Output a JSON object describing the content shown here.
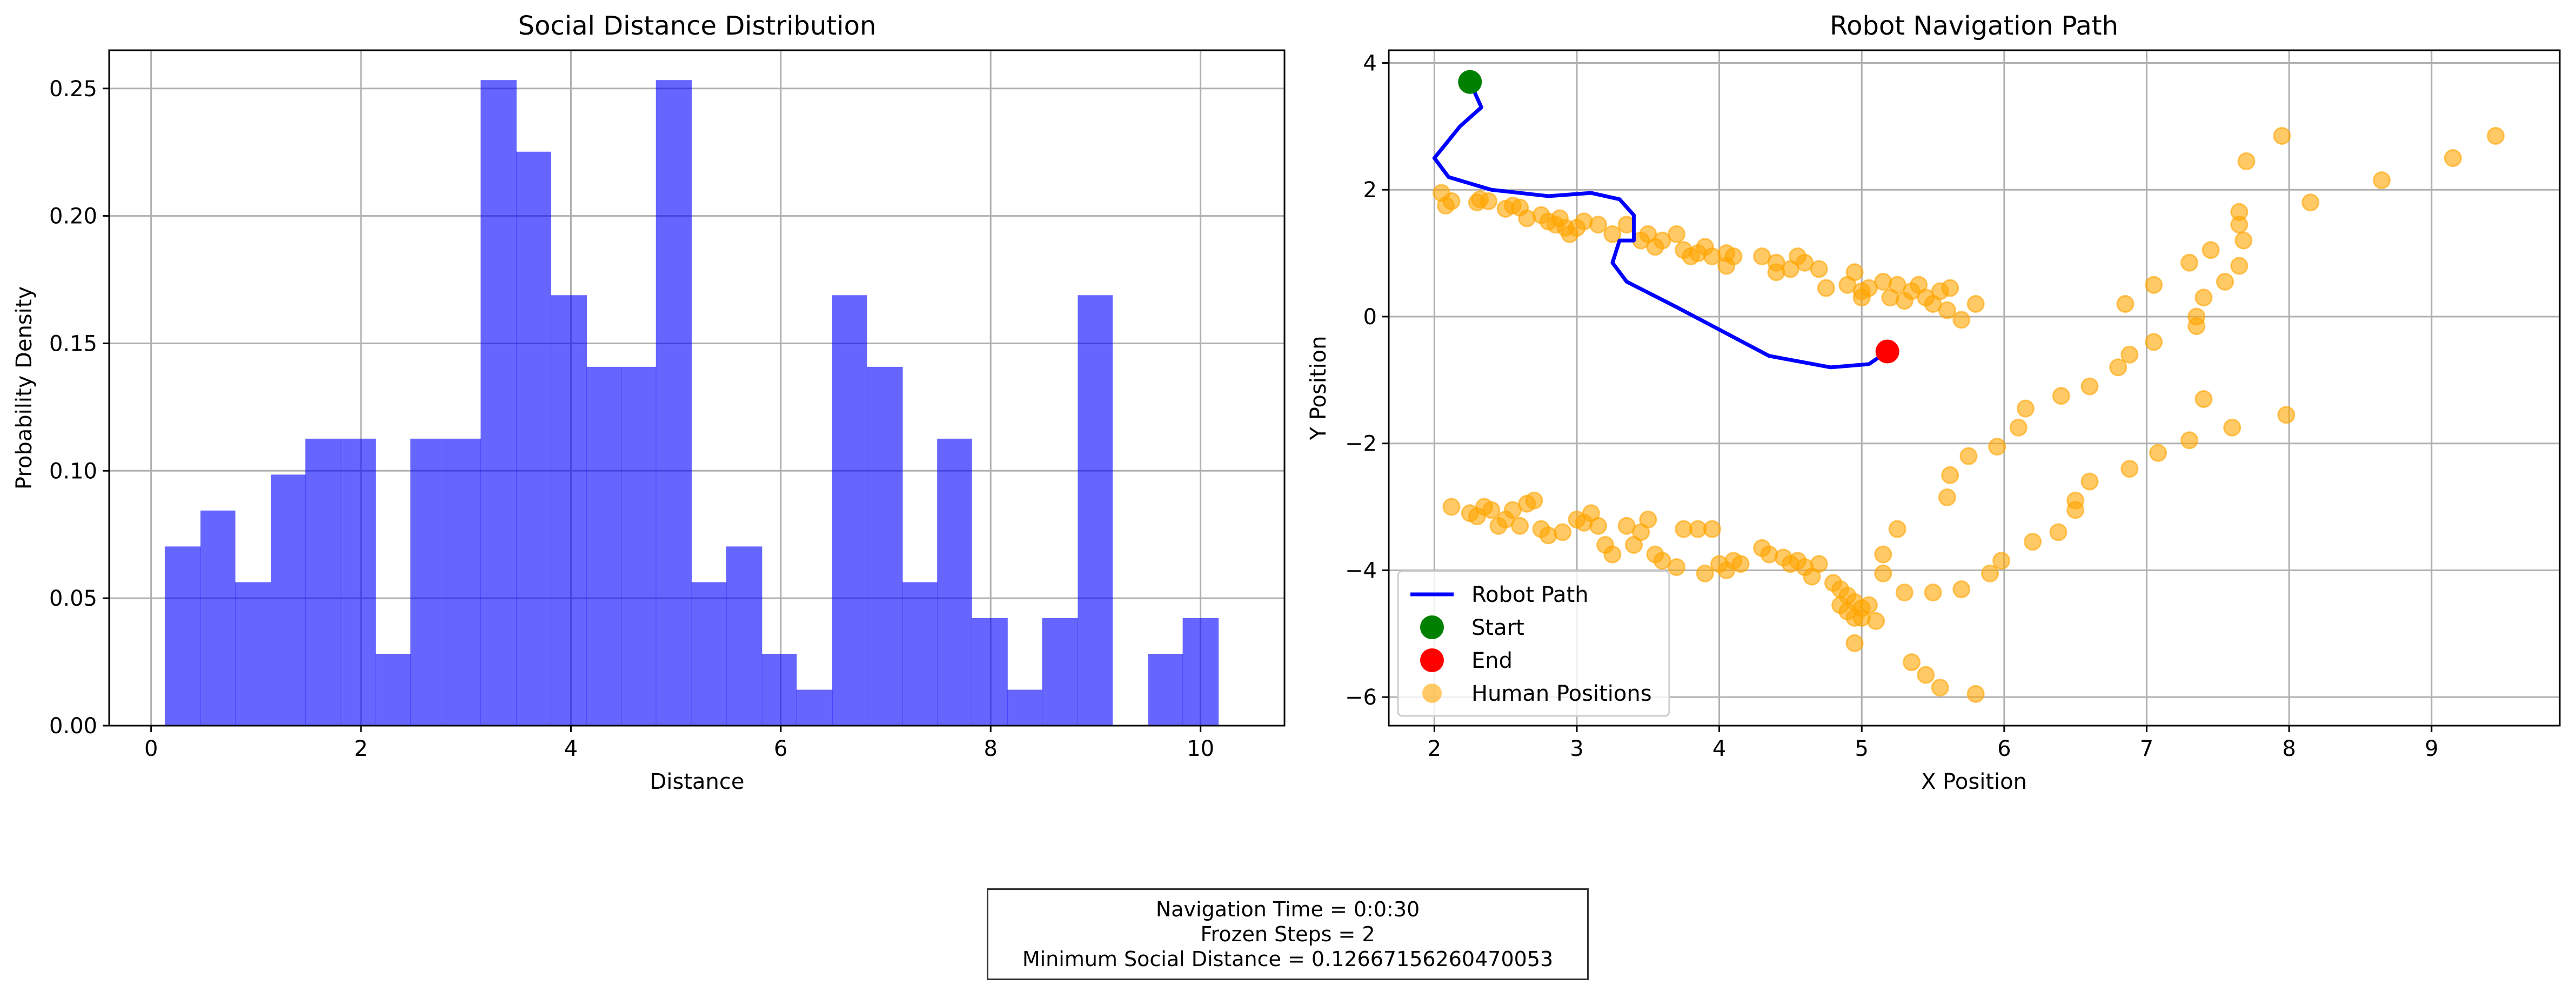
{
  "chart_data": [
    {
      "type": "bar",
      "title": "Social Distance Distribution",
      "xlabel": "Distance",
      "ylabel": "Probability Density",
      "xlim": [
        -0.4,
        10.8
      ],
      "ylim": [
        0,
        0.265
      ],
      "xticks": [
        "0",
        "2",
        "4",
        "6",
        "8",
        "10"
      ],
      "yticks": [
        "0.00",
        "0.05",
        "0.10",
        "0.15",
        "0.20",
        "0.25"
      ],
      "grid": true,
      "bar_color": "#0000ff",
      "bins": [
        {
          "x0": 0.13,
          "x1": 0.47,
          "value": 0.0703
        },
        {
          "x0": 0.47,
          "x1": 0.8,
          "value": 0.0844
        },
        {
          "x0": 0.8,
          "x1": 1.14,
          "value": 0.0563
        },
        {
          "x0": 1.14,
          "x1": 1.47,
          "value": 0.0985
        },
        {
          "x0": 1.47,
          "x1": 1.8,
          "value": 0.1126
        },
        {
          "x0": 1.8,
          "x1": 2.14,
          "value": 0.1126
        },
        {
          "x0": 2.14,
          "x1": 2.47,
          "value": 0.0282
        },
        {
          "x0": 2.47,
          "x1": 2.81,
          "value": 0.1126
        },
        {
          "x0": 2.81,
          "x1": 3.14,
          "value": 0.1126
        },
        {
          "x0": 3.14,
          "x1": 3.48,
          "value": 0.2533
        },
        {
          "x0": 3.48,
          "x1": 3.81,
          "value": 0.2252
        },
        {
          "x0": 3.81,
          "x1": 4.15,
          "value": 0.1689
        },
        {
          "x0": 4.15,
          "x1": 4.48,
          "value": 0.1408
        },
        {
          "x0": 4.48,
          "x1": 4.81,
          "value": 0.1408
        },
        {
          "x0": 4.81,
          "x1": 5.15,
          "value": 0.2533
        },
        {
          "x0": 5.15,
          "x1": 5.48,
          "value": 0.0563
        },
        {
          "x0": 5.48,
          "x1": 5.82,
          "value": 0.0703
        },
        {
          "x0": 5.82,
          "x1": 6.15,
          "value": 0.0282
        },
        {
          "x0": 6.15,
          "x1": 6.49,
          "value": 0.0141
        },
        {
          "x0": 6.49,
          "x1": 6.82,
          "value": 0.1689
        },
        {
          "x0": 6.82,
          "x1": 7.16,
          "value": 0.1408
        },
        {
          "x0": 7.16,
          "x1": 7.49,
          "value": 0.0563
        },
        {
          "x0": 7.49,
          "x1": 7.82,
          "value": 0.1126
        },
        {
          "x0": 7.82,
          "x1": 8.16,
          "value": 0.0422
        },
        {
          "x0": 8.16,
          "x1": 8.49,
          "value": 0.0141
        },
        {
          "x0": 8.49,
          "x1": 8.83,
          "value": 0.0422
        },
        {
          "x0": 8.83,
          "x1": 9.16,
          "value": 0.1689
        },
        {
          "x0": 9.16,
          "x1": 9.5,
          "value": 0.0
        },
        {
          "x0": 9.5,
          "x1": 9.83,
          "value": 0.0282
        },
        {
          "x0": 9.83,
          "x1": 10.17,
          "value": 0.0422
        }
      ]
    },
    {
      "type": "line",
      "title": "Robot Navigation Path",
      "xlabel": "X Position",
      "ylabel": "Y Position",
      "xlim": [
        1.68,
        9.9
      ],
      "ylim": [
        -6.45,
        4.2
      ],
      "xticks": [
        2,
        3,
        4,
        5,
        6,
        7,
        8,
        9
      ],
      "yticks": [
        -6,
        -4,
        -2,
        0,
        2,
        4
      ],
      "ytick_labels": [
        "−6",
        "−4",
        "−2",
        "0",
        "2",
        "4"
      ],
      "grid": true,
      "legend_position": "lower-left",
      "series": [
        {
          "name": "Robot Path",
          "kind": "line",
          "color": "#0000ff",
          "x": [
            2.25,
            2.33,
            2.18,
            2.0,
            2.1,
            2.4,
            2.8,
            3.1,
            3.3,
            3.4,
            3.4,
            3.3,
            3.25,
            3.35,
            3.7,
            4.35,
            4.78,
            5.05,
            5.18
          ],
          "y": [
            3.7,
            3.3,
            3.0,
            2.5,
            2.2,
            2.0,
            1.9,
            1.95,
            1.85,
            1.6,
            1.2,
            1.2,
            0.85,
            0.55,
            0.15,
            -0.62,
            -0.8,
            -0.75,
            -0.55
          ]
        },
        {
          "name": "Start",
          "kind": "marker",
          "color": "#008000",
          "x": [
            2.25
          ],
          "y": [
            3.7
          ]
        },
        {
          "name": "End",
          "kind": "marker",
          "color": "#ff0000",
          "x": [
            5.18
          ],
          "y": [
            -0.55
          ]
        },
        {
          "name": "Human Positions",
          "kind": "scatter",
          "color": "#ffa500",
          "alpha": 0.6,
          "points": [
            [
              2.05,
              1.95
            ],
            [
              2.08,
              1.75
            ],
            [
              2.12,
              1.82
            ],
            [
              2.3,
              1.8
            ],
            [
              2.32,
              1.85
            ],
            [
              2.38,
              1.82
            ],
            [
              2.5,
              1.7
            ],
            [
              2.55,
              1.75
            ],
            [
              2.6,
              1.72
            ],
            [
              2.65,
              1.55
            ],
            [
              2.75,
              1.6
            ],
            [
              2.8,
              1.5
            ],
            [
              2.85,
              1.45
            ],
            [
              2.88,
              1.55
            ],
            [
              2.92,
              1.4
            ],
            [
              2.95,
              1.3
            ],
            [
              3.0,
              1.4
            ],
            [
              3.05,
              1.5
            ],
            [
              3.15,
              1.45
            ],
            [
              3.25,
              1.3
            ],
            [
              3.35,
              1.45
            ],
            [
              3.45,
              1.2
            ],
            [
              3.5,
              1.3
            ],
            [
              3.55,
              1.1
            ],
            [
              3.6,
              1.2
            ],
            [
              3.7,
              1.3
            ],
            [
              3.75,
              1.05
            ],
            [
              3.8,
              0.95
            ],
            [
              3.85,
              1.0
            ],
            [
              3.9,
              1.1
            ],
            [
              3.95,
              0.95
            ],
            [
              4.05,
              0.8
            ],
            [
              4.05,
              1.0
            ],
            [
              4.1,
              0.95
            ],
            [
              4.3,
              0.95
            ],
            [
              4.4,
              0.85
            ],
            [
              4.4,
              0.7
            ],
            [
              4.5,
              0.75
            ],
            [
              4.55,
              0.95
            ],
            [
              4.6,
              0.85
            ],
            [
              4.7,
              0.75
            ],
            [
              4.75,
              0.45
            ],
            [
              4.9,
              0.5
            ],
            [
              4.95,
              0.7
            ],
            [
              5.0,
              0.3
            ],
            [
              5.0,
              0.4
            ],
            [
              5.05,
              0.45
            ],
            [
              5.15,
              0.55
            ],
            [
              5.2,
              0.3
            ],
            [
              5.25,
              0.5
            ],
            [
              5.3,
              0.25
            ],
            [
              5.35,
              0.4
            ],
            [
              5.4,
              0.5
            ],
            [
              5.45,
              0.3
            ],
            [
              5.5,
              0.2
            ],
            [
              5.55,
              0.4
            ],
            [
              5.6,
              0.1
            ],
            [
              5.62,
              0.45
            ],
            [
              5.7,
              -0.05
            ],
            [
              5.8,
              0.2
            ],
            [
              2.12,
              -3.0
            ],
            [
              2.25,
              -3.1
            ],
            [
              2.3,
              -3.15
            ],
            [
              2.35,
              -3.0
            ],
            [
              2.4,
              -3.05
            ],
            [
              2.45,
              -3.3
            ],
            [
              2.5,
              -3.2
            ],
            [
              2.55,
              -3.05
            ],
            [
              2.6,
              -3.3
            ],
            [
              2.65,
              -2.95
            ],
            [
              2.7,
              -2.9
            ],
            [
              2.75,
              -3.35
            ],
            [
              2.8,
              -3.45
            ],
            [
              2.9,
              -3.4
            ],
            [
              3.0,
              -3.2
            ],
            [
              3.05,
              -3.25
            ],
            [
              3.1,
              -3.1
            ],
            [
              3.15,
              -3.3
            ],
            [
              3.2,
              -3.6
            ],
            [
              3.25,
              -3.75
            ],
            [
              3.35,
              -3.3
            ],
            [
              3.4,
              -3.6
            ],
            [
              3.45,
              -3.4
            ],
            [
              3.5,
              -3.2
            ],
            [
              3.55,
              -3.75
            ],
            [
              3.6,
              -3.85
            ],
            [
              3.7,
              -3.95
            ],
            [
              3.75,
              -3.35
            ],
            [
              3.85,
              -3.35
            ],
            [
              3.9,
              -4.05
            ],
            [
              3.95,
              -3.35
            ],
            [
              4.0,
              -3.9
            ],
            [
              4.05,
              -4.0
            ],
            [
              4.1,
              -3.85
            ],
            [
              4.15,
              -3.9
            ],
            [
              4.3,
              -3.65
            ],
            [
              4.35,
              -3.75
            ],
            [
              4.45,
              -3.8
            ],
            [
              4.5,
              -3.9
            ],
            [
              4.55,
              -3.85
            ],
            [
              4.6,
              -3.95
            ],
            [
              4.65,
              -4.1
            ],
            [
              4.7,
              -3.9
            ],
            [
              4.8,
              -4.2
            ],
            [
              4.85,
              -4.3
            ],
            [
              4.9,
              -4.4
            ],
            [
              4.95,
              -4.5
            ],
            [
              5.0,
              -4.6
            ],
            [
              5.05,
              -4.55
            ],
            [
              4.85,
              -4.55
            ],
            [
              4.9,
              -4.65
            ],
            [
              4.95,
              -4.75
            ],
            [
              5.0,
              -4.75
            ],
            [
              5.1,
              -4.8
            ],
            [
              4.95,
              -5.15
            ],
            [
              5.15,
              -4.05
            ],
            [
              5.15,
              -3.75
            ],
            [
              5.25,
              -3.35
            ],
            [
              5.3,
              -4.35
            ],
            [
              5.35,
              -5.45
            ],
            [
              5.45,
              -5.65
            ],
            [
              5.5,
              -4.35
            ],
            [
              5.55,
              -5.85
            ],
            [
              5.6,
              -2.85
            ],
            [
              5.62,
              -2.5
            ],
            [
              5.7,
              -4.3
            ],
            [
              5.75,
              -2.2
            ],
            [
              5.8,
              -5.95
            ],
            [
              5.9,
              -4.05
            ],
            [
              5.95,
              -2.05
            ],
            [
              5.98,
              -3.85
            ],
            [
              6.1,
              -1.75
            ],
            [
              6.15,
              -1.45
            ],
            [
              6.2,
              -3.55
            ],
            [
              6.38,
              -3.4
            ],
            [
              6.4,
              -1.25
            ],
            [
              6.5,
              -3.05
            ],
            [
              6.5,
              -2.9
            ],
            [
              6.6,
              -2.6
            ],
            [
              6.6,
              -1.1
            ],
            [
              6.8,
              -0.8
            ],
            [
              6.85,
              0.2
            ],
            [
              6.88,
              -0.6
            ],
            [
              6.88,
              -2.4
            ],
            [
              7.05,
              -0.4
            ],
            [
              7.05,
              0.5
            ],
            [
              7.08,
              -2.15
            ],
            [
              7.3,
              -1.95
            ],
            [
              7.3,
              0.85
            ],
            [
              7.35,
              -0.15
            ],
            [
              7.35,
              0.0
            ],
            [
              7.4,
              -1.3
            ],
            [
              7.4,
              0.3
            ],
            [
              7.45,
              1.05
            ],
            [
              7.55,
              0.55
            ],
            [
              7.6,
              -1.75
            ],
            [
              7.65,
              0.8
            ],
            [
              7.65,
              1.45
            ],
            [
              7.65,
              1.65
            ],
            [
              7.68,
              1.2
            ],
            [
              7.7,
              2.45
            ],
            [
              7.95,
              2.85
            ],
            [
              7.98,
              -1.55
            ],
            [
              8.15,
              1.8
            ],
            [
              8.65,
              2.15
            ],
            [
              9.15,
              2.5
            ],
            [
              9.45,
              2.85
            ]
          ]
        }
      ]
    }
  ],
  "stats_box": {
    "line1": "Navigation Time = 0:0:30",
    "line2": "Frozen Steps = 2",
    "line3": "Minimum Social Distance = 0.12667156260470053"
  }
}
